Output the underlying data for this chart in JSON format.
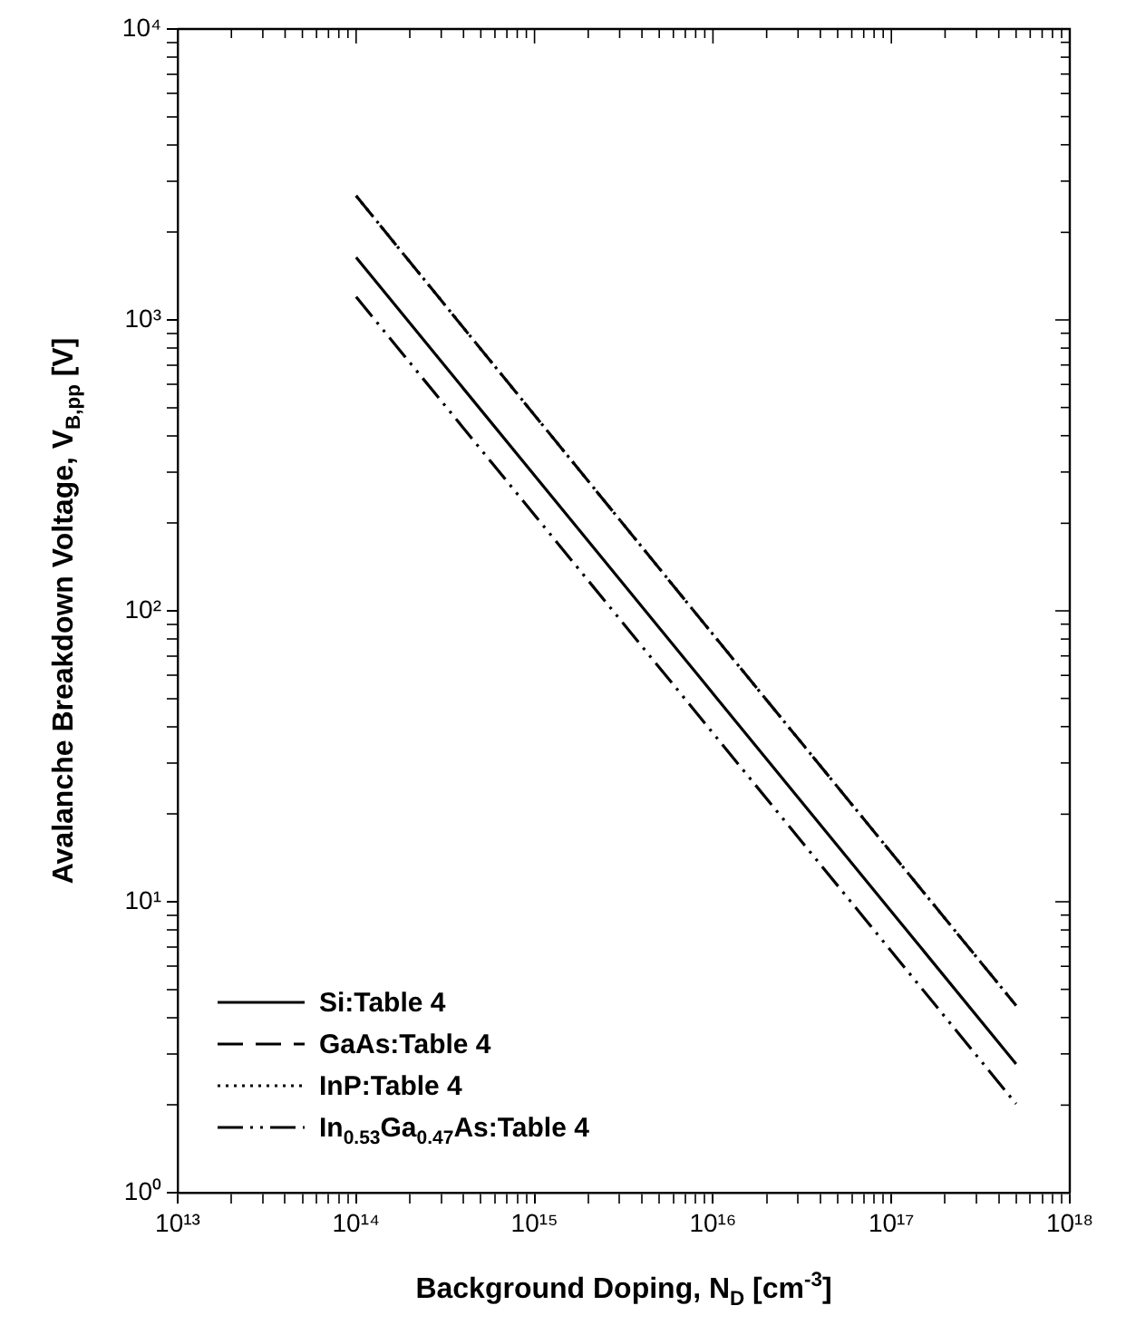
{
  "chart_data": {
    "type": "line",
    "xlabel": "Background Doping, N$_{D}$ [cm$^{-3}$]",
    "ylabel": "Avalanche Breakdown Voltage, V$_{B,pp}$ [V]",
    "log": "xy",
    "x": [
      100000000000000.0,
      1e+16,
      5e+17
    ],
    "xlim": [
      10000000000000.0,
      1e+18
    ],
    "xticks": [
      {
        "value": 10000000000000.0,
        "label": "10¹³"
      },
      {
        "value": 100000000000000.0,
        "label": "10¹⁴"
      },
      {
        "value": 1000000000000000.0,
        "label": "10¹⁵"
      },
      {
        "value": 1e+16,
        "label": "10¹⁶"
      },
      {
        "value": 1e+17,
        "label": "10¹⁷"
      },
      {
        "value": 1e+18,
        "label": "10¹⁸"
      }
    ],
    "ylim": [
      1,
      10000
    ],
    "yticks": [
      {
        "value": 1,
        "label": "10⁰"
      },
      {
        "value": 10,
        "label": "10¹"
      },
      {
        "value": 100,
        "label": "10²"
      },
      {
        "value": 1000,
        "label": "10³"
      },
      {
        "value": 10000,
        "label": "10⁴"
      }
    ],
    "series": [
      {
        "name": "Si:Table 4",
        "color": "#000000",
        "line_style": "solid",
        "values": [
          1640,
          52,
          2.77
        ]
      },
      {
        "name": "GaAs:Table 4",
        "color": "#000000",
        "line_style": "dashed",
        "values": [
          2670,
          83,
          4.4
        ]
      },
      {
        "name": "InP:Table 4",
        "color": "#000000",
        "line_style": "dotted",
        "values": [
          2670,
          83,
          4.4
        ]
      },
      {
        "name": "In$_{0.53}$Ga$_{0.47}$As:Table 4",
        "color": "#000000",
        "line_style": "dashdot",
        "values": [
          1200,
          38,
          2.02
        ]
      }
    ],
    "marker": "none",
    "grid": false,
    "legend": "bottom left"
  }
}
